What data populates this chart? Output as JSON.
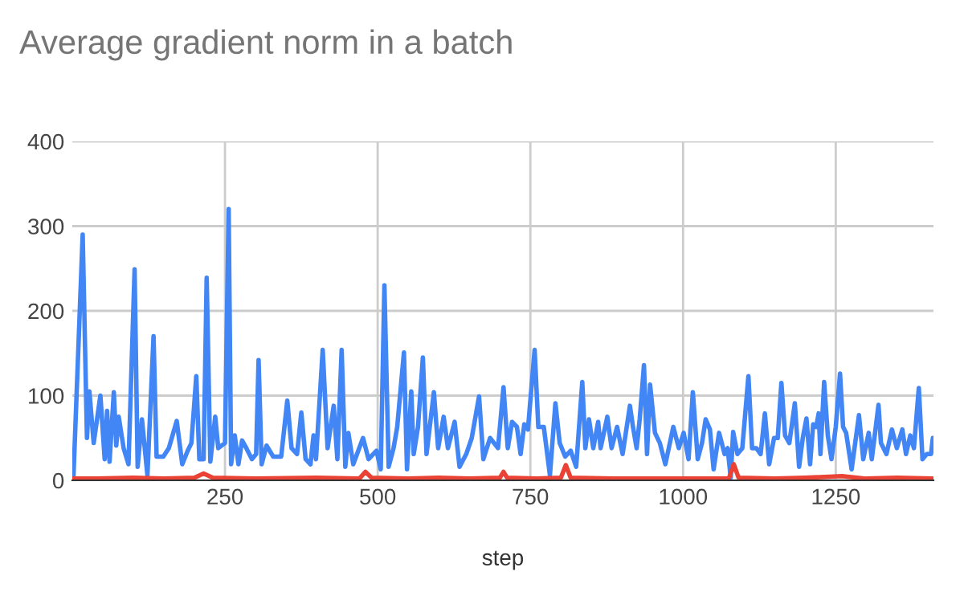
{
  "chart_data": {
    "type": "line",
    "title": "Average gradient norm in a batch",
    "xlabel": "step",
    "xlim": [
      0,
      1410
    ],
    "xticks": [
      250,
      500,
      750,
      1000,
      1250
    ],
    "ylim": [
      0,
      400
    ],
    "yticks": [
      0,
      100,
      200,
      300,
      400
    ],
    "grid": true,
    "marker": "none",
    "line_style": "solid",
    "series": [
      {
        "color": "#4285f4",
        "x": [
          2,
          17,
          24,
          28,
          35,
          46,
          53,
          57,
          61,
          68,
          72,
          76,
          84,
          92,
          102,
          107,
          114,
          123,
          133,
          138,
          149,
          158,
          171,
          180,
          189,
          195,
          203,
          208,
          215,
          220,
          226,
          234,
          239,
          250,
          256,
          260,
          266,
          272,
          278,
          285,
          294,
          301,
          305,
          310,
          318,
          329,
          342,
          352,
          359,
          368,
          375,
          382,
          390,
          395,
          399,
          410,
          418,
          428,
          434,
          441,
          447,
          452,
          460,
          476,
          485,
          498,
          505,
          511,
          518,
          526,
          532,
          543,
          548,
          555,
          559,
          566,
          574,
          580,
          592,
          599,
          608,
          615,
          626,
          634,
          645,
          654,
          666,
          673,
          684,
          697,
          706,
          713,
          720,
          728,
          734,
          740,
          746,
          757,
          763,
          772,
          782,
          791,
          798,
          807,
          816,
          825,
          835,
          840,
          846,
          853,
          861,
          865,
          876,
          883,
          892,
          901,
          913,
          918,
          924,
          929,
          936,
          941,
          946,
          954,
          962,
          971,
          984,
          993,
          1001,
          1009,
          1016,
          1024,
          1031,
          1037,
          1044,
          1050,
          1059,
          1068,
          1073,
          1078,
          1082,
          1089,
          1097,
          1107,
          1113,
          1120,
          1127,
          1134,
          1141,
          1149,
          1155,
          1161,
          1167,
          1174,
          1183,
          1190,
          1196,
          1202,
          1208,
          1213,
          1218,
          1222,
          1225,
          1231,
          1237,
          1243,
          1250,
          1257,
          1262,
          1267,
          1276,
          1288,
          1295,
          1304,
          1309,
          1320,
          1324,
          1333,
          1342,
          1350,
          1359,
          1365,
          1372,
          1378,
          1386,
          1392,
          1399,
          1406,
          1409
        ],
        "values": [
          6,
          290,
          50,
          105,
          44,
          100,
          25,
          82,
          22,
          104,
          41,
          75,
          38,
          19,
          249,
          16,
          72,
          6,
          170,
          28,
          28,
          38,
          70,
          19,
          35,
          44,
          123,
          25,
          25,
          239,
          22,
          75,
          38,
          44,
          320,
          19,
          53,
          19,
          47,
          38,
          25,
          31,
          142,
          19,
          41,
          28,
          28,
          94,
          38,
          31,
          80,
          25,
          19,
          53,
          25,
          154,
          38,
          88,
          25,
          154,
          16,
          56,
          19,
          50,
          25,
          35,
          13,
          230,
          16,
          38,
          63,
          151,
          13,
          105,
          31,
          63,
          145,
          31,
          104,
          38,
          75,
          38,
          69,
          16,
          31,
          50,
          99,
          25,
          50,
          38,
          110,
          38,
          69,
          63,
          31,
          66,
          60,
          154,
          63,
          63,
          6,
          91,
          44,
          28,
          35,
          16,
          116,
          38,
          72,
          38,
          69,
          38,
          75,
          38,
          63,
          31,
          88,
          63,
          38,
          72,
          136,
          31,
          113,
          56,
          44,
          19,
          63,
          38,
          56,
          25,
          104,
          25,
          44,
          72,
          60,
          13,
          56,
          31,
          38,
          3,
          57,
          31,
          38,
          123,
          38,
          38,
          31,
          79,
          19,
          50,
          50,
          115,
          53,
          44,
          91,
          16,
          50,
          73,
          19,
          66,
          63,
          79,
          31,
          116,
          53,
          25,
          63,
          126,
          63,
          56,
          13,
          77,
          25,
          56,
          25,
          89,
          44,
          31,
          60,
          38,
          60,
          31,
          53,
          38,
          109,
          25,
          31,
          31,
          50
        ]
      },
      {
        "color": "#ea4335",
        "x": [
          0,
          40,
          100,
          150,
          200,
          215,
          230,
          300,
          400,
          470,
          480,
          490,
          550,
          600,
          650,
          700,
          706,
          712,
          760,
          800,
          808,
          816,
          900,
          1000,
          1075,
          1083,
          1091,
          1150,
          1200,
          1260,
          1300,
          1350,
          1409
        ],
        "values": [
          2,
          2,
          3,
          2,
          3,
          8,
          3,
          2,
          3,
          2,
          10,
          3,
          2,
          3,
          2,
          3,
          10,
          3,
          2,
          3,
          18,
          3,
          2,
          2,
          2,
          19,
          3,
          2,
          3,
          5,
          2,
          3,
          2
        ]
      }
    ]
  }
}
